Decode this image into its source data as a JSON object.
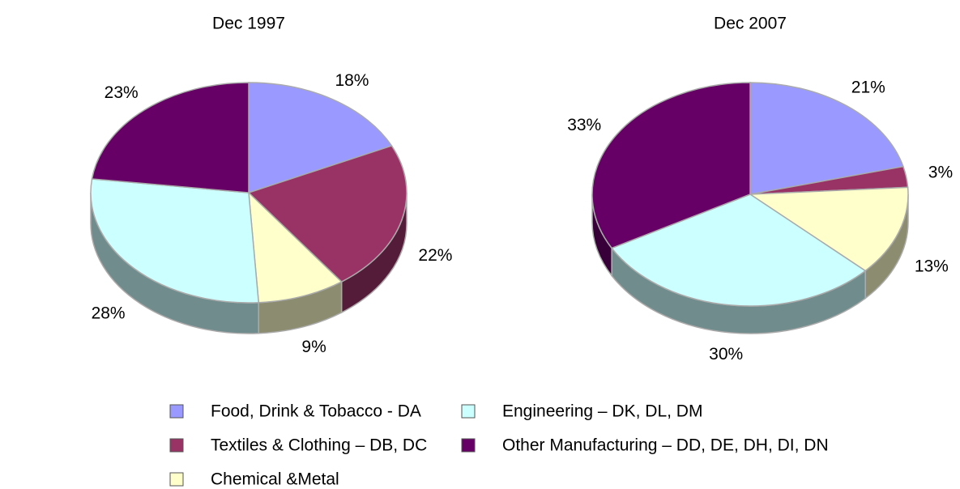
{
  "chart_data": [
    {
      "type": "pie",
      "title": "Dec 1997",
      "categories": [
        "Food, Drink & Tobacco - DA",
        "Textiles & Clothing – DB, DC",
        "Chemical &Metal",
        "Engineering – DK, DL, DM",
        "Other Manufacturing – DD, DE, DH, DI, DN"
      ],
      "values": [
        18,
        22,
        9,
        28,
        23
      ],
      "value_labels": [
        "18%",
        "22%",
        "9%",
        "28%",
        "23%"
      ],
      "colors": [
        "#9999ff",
        "#993366",
        "#ffffcc",
        "#ccffff",
        "#660066"
      ]
    },
    {
      "type": "pie",
      "title": "Dec 2007",
      "categories": [
        "Food, Drink & Tobacco - DA",
        "Textiles & Clothing – DB, DC",
        "Chemical &Metal",
        "Engineering – DK, DL, DM",
        "Other Manufacturing – DD, DE, DH, DI, DN"
      ],
      "values": [
        21,
        3,
        13,
        30,
        33
      ],
      "value_labels": [
        "21%",
        "3%",
        "13%",
        "30%",
        "33%"
      ],
      "colors": [
        "#9999ff",
        "#993366",
        "#ffffcc",
        "#ccffff",
        "#660066"
      ]
    }
  ]
}
